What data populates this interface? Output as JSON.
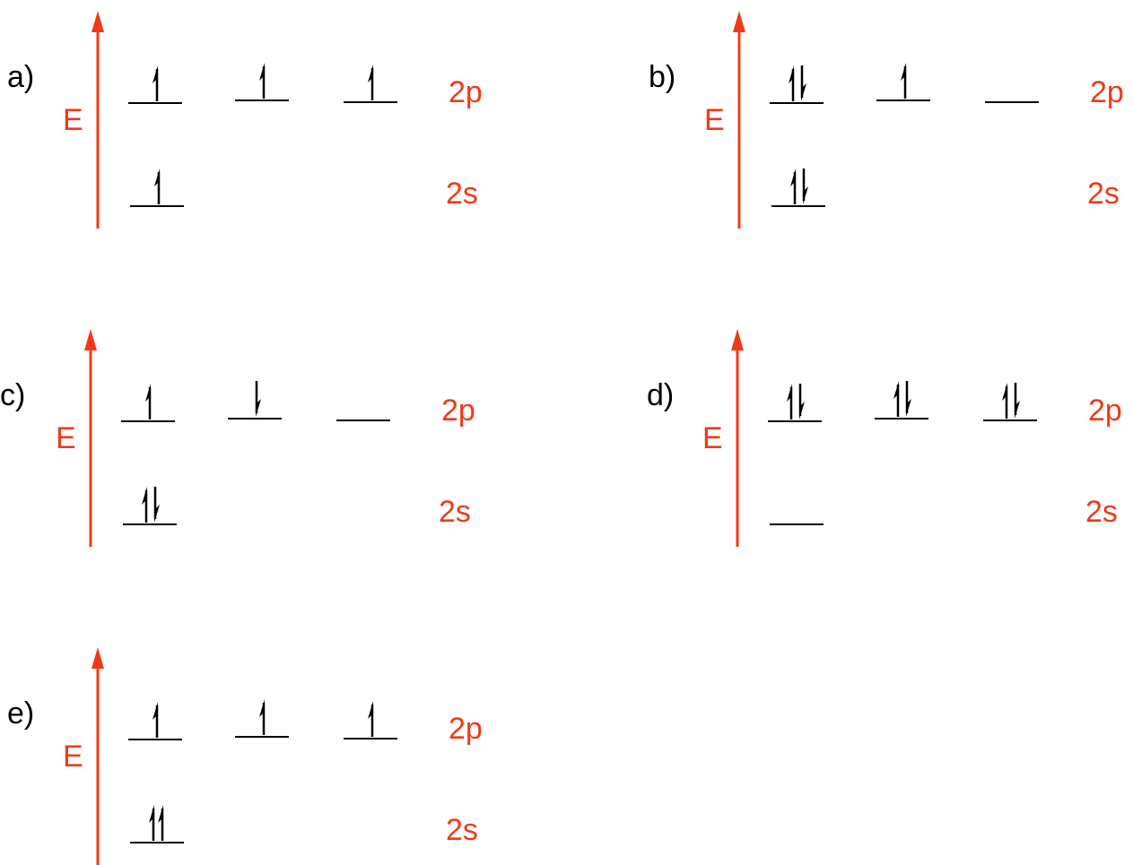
{
  "panels": [
    {
      "label": "a)",
      "axis": "E",
      "upper": "2p",
      "lower": "2s"
    },
    {
      "label": "b)",
      "axis": "E",
      "upper": "2p",
      "lower": "2s"
    },
    {
      "label": "c)",
      "axis": "E",
      "upper": "2p",
      "lower": "2s"
    },
    {
      "label": "d)",
      "axis": "E",
      "upper": "2p",
      "lower": "2s"
    },
    {
      "label": "e)",
      "axis": "E",
      "upper": "2p",
      "lower": "2s"
    }
  ]
}
